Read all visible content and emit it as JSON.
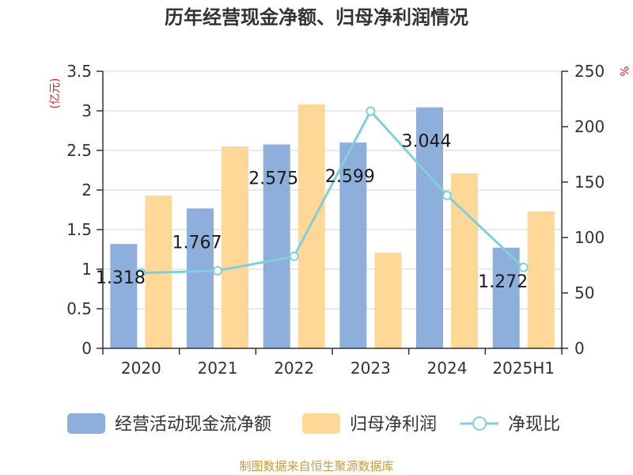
{
  "chart_data": {
    "type": "bar",
    "title": "历年经营现金净额、归母净利润情况",
    "categories": [
      "2020",
      "2021",
      "2022",
      "2023",
      "2024",
      "2025H1"
    ],
    "series": [
      {
        "name": "经营活动现金流净额",
        "kind": "bar",
        "axis": "left",
        "color": "#8eaedb",
        "values": [
          1.318,
          1.767,
          2.575,
          2.599,
          3.044,
          1.272
        ],
        "labels": [
          "1.318",
          "1.767",
          "2.575",
          "2.599",
          "3.044",
          "1.272"
        ]
      },
      {
        "name": "归母净利润",
        "kind": "bar",
        "axis": "left",
        "color": "#ffd796",
        "values": [
          1.93,
          2.55,
          3.08,
          1.21,
          2.21,
          1.73
        ]
      },
      {
        "name": "净现比",
        "kind": "line",
        "axis": "right",
        "color": "#7fd0dc",
        "values": [
          68,
          70,
          83,
          214,
          138,
          73
        ]
      }
    ],
    "ylabel_left": "(亿元)",
    "ylabel_right": "%",
    "ylim_left": [
      0,
      3.5
    ],
    "ylim_right": [
      0,
      250
    ],
    "yticks_left": [
      "0",
      "0.5",
      "1",
      "1.5",
      "2",
      "2.5",
      "3",
      "3.5"
    ],
    "yticks_right": [
      "0",
      "50",
      "100",
      "150",
      "200",
      "250"
    ],
    "grid": true,
    "legend_position": "bottom"
  },
  "footer": "制图数据来自恒生聚源数据库"
}
